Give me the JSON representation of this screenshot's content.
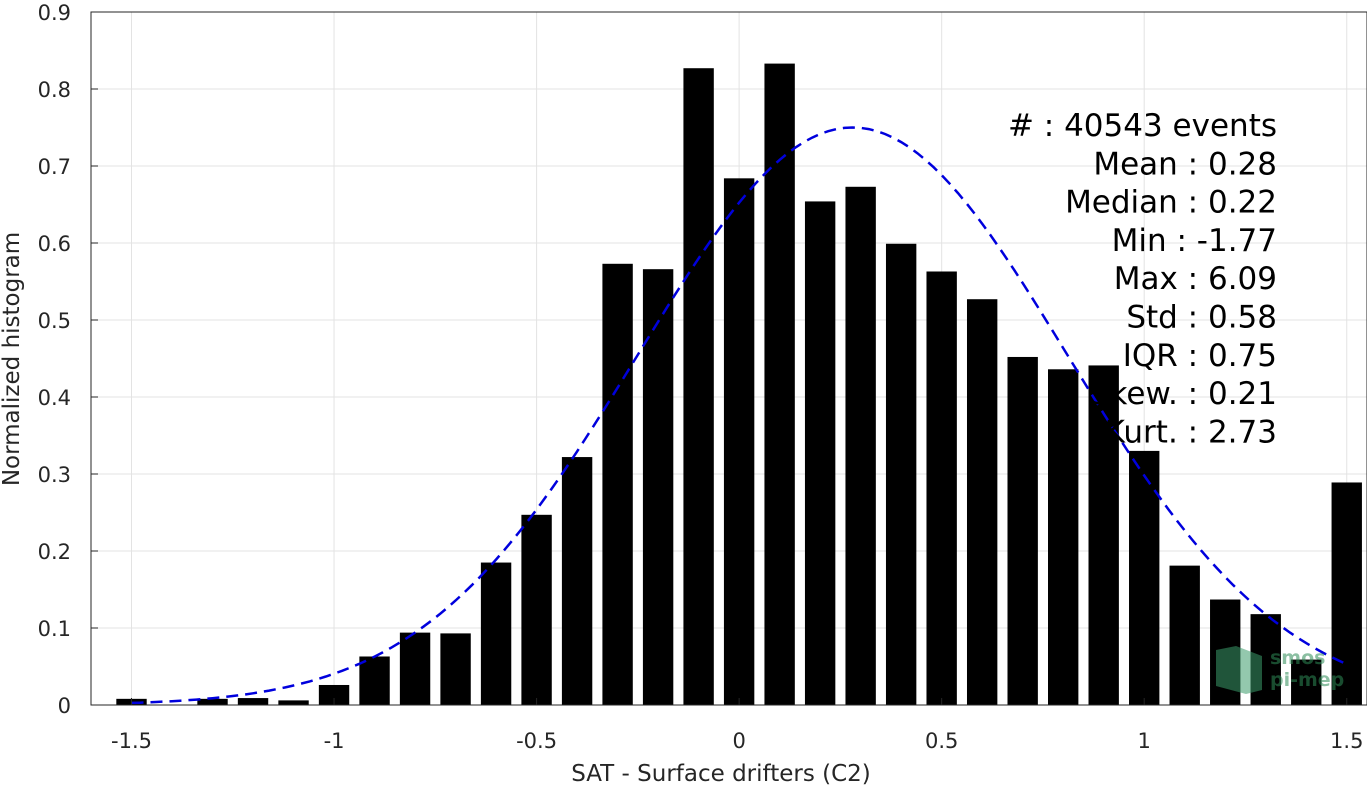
{
  "chart_data": {
    "type": "bar",
    "xlabel": "SAT - Surface drifters (C2)",
    "ylabel": "Normalized histogram",
    "xlim": [
      -1.6,
      1.55
    ],
    "ylim": [
      0,
      0.9
    ],
    "xticks": [
      -1.5,
      -1,
      -0.5,
      0,
      0.5,
      1,
      1.5
    ],
    "xtick_labels": [
      "-1.5",
      "-1",
      "-0.5",
      "0",
      "0.5",
      "1",
      "1.5"
    ],
    "yticks": [
      0,
      0.1,
      0.2,
      0.3,
      0.4,
      0.5,
      0.6,
      0.7,
      0.8,
      0.9
    ],
    "ytick_labels": [
      "0",
      "0.1",
      "0.2",
      "0.3",
      "0.4",
      "0.5",
      "0.6",
      "0.7",
      "0.8",
      "0.9"
    ],
    "grid": true,
    "bar_color": "#000000",
    "bin_width": 0.1,
    "x": [
      -1.5,
      -1.4,
      -1.3,
      -1.2,
      -1.1,
      -1.0,
      -0.9,
      -0.8,
      -0.7,
      -0.6,
      -0.5,
      -0.4,
      -0.3,
      -0.2,
      -0.1,
      0.0,
      0.1,
      0.2,
      0.3,
      0.4,
      0.5,
      0.6,
      0.7,
      0.8,
      0.9,
      1.0,
      1.1,
      1.2,
      1.3,
      1.4,
      1.5
    ],
    "values": [
      0.008,
      0,
      0.008,
      0.009,
      0.006,
      0.026,
      0.063,
      0.094,
      0.093,
      0.185,
      0.247,
      0.322,
      0.573,
      0.566,
      0.827,
      0.684,
      0.833,
      0.654,
      0.673,
      0.599,
      0.563,
      0.527,
      0.452,
      0.436,
      0.441,
      0.33,
      0.181,
      0.137,
      0.118,
      0.059,
      0.289
    ],
    "fit_curve": {
      "style": "dashed",
      "color": "#0000dd",
      "mean": 0.28,
      "std": 0.53,
      "peak": 0.75,
      "x_range": [
        -1.5,
        1.5
      ]
    },
    "stats": [
      "#  : 40543 events",
      "Mean : 0.28",
      "Median : 0.22",
      "Min : -1.77",
      "Max : 6.09",
      "Std : 0.58",
      "IQR : 0.75",
      "Skew. : 0.21",
      "Kurt. : 2.73"
    ],
    "watermark": [
      "smos",
      "pi-mep"
    ]
  }
}
